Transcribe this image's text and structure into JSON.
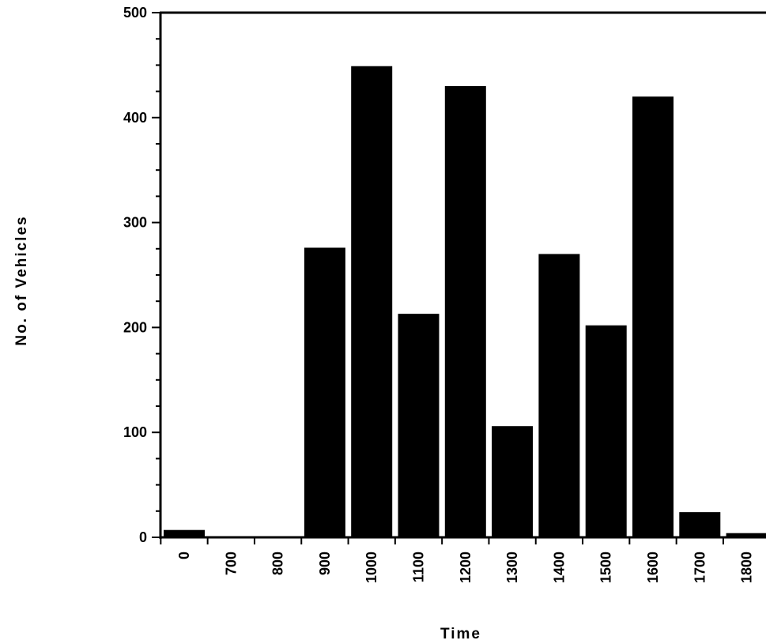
{
  "chart_data": {
    "type": "bar",
    "title": "",
    "xlabel": "Time",
    "ylabel": "No. of Vehicles",
    "categories": [
      "0",
      "700",
      "800",
      "900",
      "1000",
      "1100",
      "1200",
      "1300",
      "1400",
      "1500",
      "1600",
      "1700",
      "1800"
    ],
    "values": [
      7,
      1,
      1,
      276,
      449,
      213,
      430,
      106,
      270,
      202,
      420,
      24,
      4
    ],
    "ylim": [
      0,
      500
    ],
    "yticks": [
      "0",
      "100",
      "200",
      "300",
      "400",
      "500"
    ],
    "grid": false,
    "legend": "none",
    "bar_color": "#000000"
  }
}
